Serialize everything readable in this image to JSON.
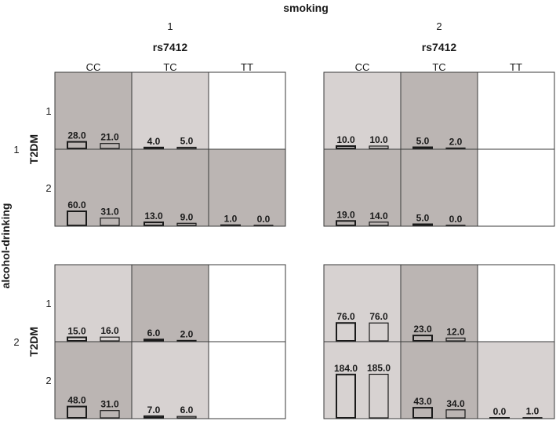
{
  "chart_data": {
    "type": "bar",
    "title": "smoking",
    "col_facet": {
      "label": "smoking",
      "values": [
        "1",
        "2"
      ]
    },
    "x_var": {
      "label": "rs7412",
      "categories": [
        "CC",
        "TC",
        "TT"
      ]
    },
    "row_facet": {
      "label": "alcohol-drinking",
      "values": [
        "1",
        "2"
      ]
    },
    "inner_row_var": {
      "label": "T2DM",
      "values": [
        "1",
        "2"
      ]
    },
    "colors": {
      "dark": "#bbb5b3",
      "light": "#d7d2d1",
      "empty": "#ffffff",
      "grid": "#3a3a3a"
    },
    "panels": [
      {
        "smoking": "1",
        "alcohol": "1",
        "rows": [
          {
            "t2dm": "1",
            "cells": [
              {
                "cat": "CC",
                "shade": "dark",
                "values": [
                  28.0,
                  21.0
                ],
                "labels": [
                  "28.0",
                  "21.0"
                ]
              },
              {
                "cat": "TC",
                "shade": "light",
                "values": [
                  4.0,
                  5.0
                ],
                "labels": [
                  "4.0",
                  "5.0"
                ]
              },
              {
                "cat": "TT",
                "shade": "empty",
                "values": [],
                "labels": []
              }
            ]
          },
          {
            "t2dm": "2",
            "cells": [
              {
                "cat": "CC",
                "shade": "dark",
                "values": [
                  60.0,
                  31.0
                ],
                "labels": [
                  "60.0",
                  "31.0"
                ]
              },
              {
                "cat": "TC",
                "shade": "dark",
                "values": [
                  13.0,
                  9.0
                ],
                "labels": [
                  "13.0",
                  "9.0"
                ]
              },
              {
                "cat": "TT",
                "shade": "dark",
                "values": [
                  1.0,
                  0.0
                ],
                "labels": [
                  "1.0",
                  "0.0"
                ]
              }
            ]
          }
        ]
      },
      {
        "smoking": "2",
        "alcohol": "1",
        "rows": [
          {
            "t2dm": "1",
            "cells": [
              {
                "cat": "CC",
                "shade": "light",
                "values": [
                  10.0,
                  10.0
                ],
                "labels": [
                  "10.0",
                  "10.0"
                ]
              },
              {
                "cat": "TC",
                "shade": "dark",
                "values": [
                  5.0,
                  2.0
                ],
                "labels": [
                  "5.0",
                  "2.0"
                ]
              },
              {
                "cat": "TT",
                "shade": "empty",
                "values": [],
                "labels": []
              }
            ]
          },
          {
            "t2dm": "2",
            "cells": [
              {
                "cat": "CC",
                "shade": "dark",
                "values": [
                  19.0,
                  14.0
                ],
                "labels": [
                  "19.0",
                  "14.0"
                ]
              },
              {
                "cat": "TC",
                "shade": "dark",
                "values": [
                  5.0,
                  0.0
                ],
                "labels": [
                  "5.0",
                  "0.0"
                ]
              },
              {
                "cat": "TT",
                "shade": "empty",
                "values": [],
                "labels": []
              }
            ]
          }
        ]
      },
      {
        "smoking": "1",
        "alcohol": "2",
        "rows": [
          {
            "t2dm": "1",
            "cells": [
              {
                "cat": "CC",
                "shade": "light",
                "values": [
                  15.0,
                  16.0
                ],
                "labels": [
                  "15.0",
                  "16.0"
                ]
              },
              {
                "cat": "TC",
                "shade": "dark",
                "values": [
                  6.0,
                  2.0
                ],
                "labels": [
                  "6.0",
                  "2.0"
                ]
              },
              {
                "cat": "TT",
                "shade": "empty",
                "values": [],
                "labels": []
              }
            ]
          },
          {
            "t2dm": "2",
            "cells": [
              {
                "cat": "CC",
                "shade": "dark",
                "values": [
                  48.0,
                  31.0
                ],
                "labels": [
                  "48.0",
                  "31.0"
                ]
              },
              {
                "cat": "TC",
                "shade": "light",
                "values": [
                  7.0,
                  6.0
                ],
                "labels": [
                  "7.0",
                  "6.0"
                ]
              },
              {
                "cat": "TT",
                "shade": "empty",
                "values": [],
                "labels": []
              }
            ]
          }
        ]
      },
      {
        "smoking": "2",
        "alcohol": "2",
        "rows": [
          {
            "t2dm": "1",
            "cells": [
              {
                "cat": "CC",
                "shade": "light",
                "values": [
                  76.0,
                  76.0
                ],
                "labels": [
                  "76.0",
                  "76.0"
                ]
              },
              {
                "cat": "TC",
                "shade": "dark",
                "values": [
                  23.0,
                  12.0
                ],
                "labels": [
                  "23.0",
                  "12.0"
                ]
              },
              {
                "cat": "TT",
                "shade": "empty",
                "values": [],
                "labels": []
              }
            ]
          },
          {
            "t2dm": "2",
            "cells": [
              {
                "cat": "CC",
                "shade": "light",
                "values": [
                  184.0,
                  185.0
                ],
                "labels": [
                  "184.0",
                  "185.0"
                ]
              },
              {
                "cat": "TC",
                "shade": "dark",
                "values": [
                  43.0,
                  34.0
                ],
                "labels": [
                  "43.0",
                  "34.0"
                ]
              },
              {
                "cat": "TT",
                "shade": "light",
                "values": [
                  0.0,
                  1.0
                ],
                "labels": [
                  "0.0",
                  "1.0"
                ]
              }
            ]
          }
        ]
      }
    ]
  }
}
